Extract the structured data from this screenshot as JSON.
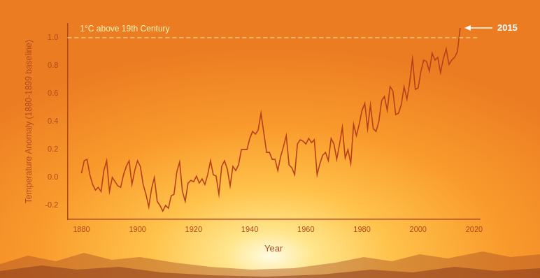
{
  "chart_data": {
    "type": "line",
    "x_label": "Year",
    "y_label": "Temperature Anomaly (1880-1899 baseline)",
    "color": "#b8401c",
    "grid": false,
    "xlim": [
      1875,
      2022
    ],
    "xticks": [
      1880,
      1900,
      1920,
      1940,
      1960,
      1980,
      2000,
      2020
    ],
    "ylim": [
      -0.3,
      1.1
    ],
    "yticks": [
      -0.2,
      {
        "value": 0,
        "label": "0.0"
      },
      0.2,
      0.4,
      0.6,
      0.8,
      {
        "value": 1,
        "label": "1.0"
      }
    ],
    "x": [
      1880,
      1881,
      1882,
      1883,
      1884,
      1885,
      1886,
      1887,
      1888,
      1889,
      1890,
      1891,
      1892,
      1893,
      1894,
      1895,
      1896,
      1897,
      1898,
      1899,
      1900,
      1901,
      1902,
      1903,
      1904,
      1905,
      1906,
      1907,
      1908,
      1909,
      1910,
      1911,
      1912,
      1913,
      1914,
      1915,
      1916,
      1917,
      1918,
      1919,
      1920,
      1921,
      1922,
      1923,
      1924,
      1925,
      1926,
      1927,
      1928,
      1929,
      1930,
      1931,
      1932,
      1933,
      1934,
      1935,
      1936,
      1937,
      1938,
      1939,
      1940,
      1941,
      1942,
      1943,
      1944,
      1945,
      1946,
      1947,
      1948,
      1949,
      1950,
      1951,
      1952,
      1953,
      1954,
      1955,
      1956,
      1957,
      1958,
      1959,
      1960,
      1961,
      1962,
      1963,
      1964,
      1965,
      1966,
      1967,
      1968,
      1969,
      1970,
      1971,
      1972,
      1973,
      1974,
      1975,
      1976,
      1977,
      1978,
      1979,
      1980,
      1981,
      1982,
      1983,
      1984,
      1985,
      1986,
      1987,
      1988,
      1989,
      1990,
      1991,
      1992,
      1993,
      1994,
      1995,
      1996,
      1997,
      1998,
      1999,
      2000,
      2001,
      2002,
      2003,
      2004,
      2005,
      2006,
      2007,
      2008,
      2009,
      2010,
      2011,
      2012,
      2013,
      2014,
      2015
    ],
    "values": [
      0.03,
      0.12,
      0.13,
      0.02,
      -0.05,
      -0.09,
      -0.07,
      -0.1,
      0.05,
      0.12,
      -0.1,
      0.0,
      -0.03,
      -0.06,
      -0.07,
      0.02,
      0.08,
      0.12,
      -0.05,
      0.05,
      0.12,
      0.08,
      -0.05,
      -0.12,
      -0.21,
      -0.08,
      0.0,
      -0.17,
      -0.2,
      -0.24,
      -0.2,
      -0.22,
      -0.13,
      -0.12,
      0.04,
      0.11,
      -0.1,
      -0.17,
      -0.04,
      -0.02,
      -0.03,
      0.01,
      -0.04,
      -0.01,
      -0.05,
      0.02,
      0.12,
      0.02,
      0.01,
      -0.12,
      0.08,
      0.12,
      0.06,
      -0.06,
      0.08,
      0.05,
      0.09,
      0.2,
      0.2,
      0.2,
      0.28,
      0.33,
      0.31,
      0.34,
      0.46,
      0.32,
      0.18,
      0.18,
      0.13,
      0.13,
      0.05,
      0.15,
      0.22,
      0.3,
      0.09,
      0.07,
      0.02,
      0.24,
      0.27,
      0.26,
      0.24,
      0.28,
      0.25,
      0.27,
      0.02,
      0.1,
      0.16,
      0.18,
      0.12,
      0.28,
      0.24,
      0.13,
      0.24,
      0.36,
      0.14,
      0.2,
      0.1,
      0.38,
      0.3,
      0.38,
      0.48,
      0.53,
      0.35,
      0.52,
      0.35,
      0.33,
      0.4,
      0.55,
      0.58,
      0.48,
      0.65,
      0.62,
      0.45,
      0.46,
      0.52,
      0.65,
      0.56,
      0.68,
      0.85,
      0.63,
      0.64,
      0.76,
      0.84,
      0.83,
      0.76,
      0.89,
      0.84,
      0.86,
      0.75,
      0.85,
      0.92,
      0.81,
      0.84,
      0.86,
      0.9,
      1.07
    ],
    "annotations": [
      {
        "text": "1°C above 19th Century",
        "y": 1.0,
        "line_style": "dashed"
      },
      {
        "text": "2015",
        "x": 2015,
        "y": 1.07,
        "marker": "arrow"
      }
    ]
  }
}
